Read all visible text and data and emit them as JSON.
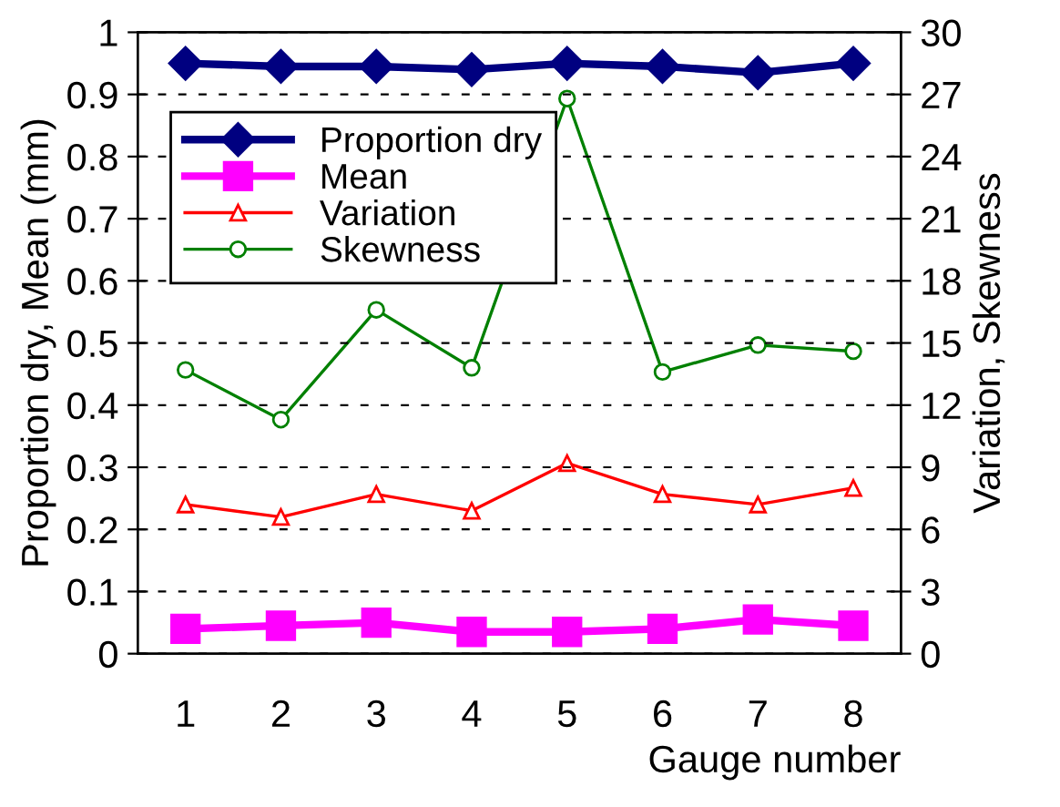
{
  "chart_data": {
    "type": "line",
    "xlabel": "Gauge number",
    "ylabel": "Proportion dry, Mean (mm)",
    "y2label": "Variation, Skewness",
    "categories": [
      "1",
      "2",
      "3",
      "4",
      "5",
      "6",
      "7",
      "8"
    ],
    "series": [
      {
        "name": "Proportion dry",
        "color": "#000080",
        "marker": "diamond",
        "values": [
          0.95,
          0.945,
          0.945,
          0.94,
          0.95,
          0.945,
          0.935,
          0.95
        ]
      },
      {
        "name": "Mean",
        "color": "#ff00ff",
        "marker": "square",
        "values": [
          0.04,
          0.045,
          0.05,
          0.035,
          0.035,
          0.04,
          0.055,
          0.045
        ]
      },
      {
        "name": "Variation",
        "color": "#ff0000",
        "marker": "triangle",
        "axis": "y2",
        "values": [
          7.2,
          6.6,
          7.7,
          6.9,
          9.2,
          7.7,
          7.2,
          8.0
        ]
      },
      {
        "name": "Skewness",
        "color": "#008000",
        "marker": "circle",
        "axis": "y2",
        "values": [
          13.7,
          11.3,
          16.6,
          13.8,
          26.8,
          13.6,
          14.9,
          14.6
        ]
      }
    ],
    "ylim": [
      0,
      1
    ],
    "yticks": [
      0,
      0.1,
      0.2,
      0.3,
      0.4,
      0.5,
      0.6,
      0.7,
      0.8,
      0.9,
      1
    ],
    "y2lim": [
      0,
      30
    ],
    "y2ticks": [
      0,
      3,
      6,
      9,
      12,
      15,
      18,
      21,
      24,
      27,
      30
    ],
    "grid": "y",
    "legend": "top left"
  }
}
